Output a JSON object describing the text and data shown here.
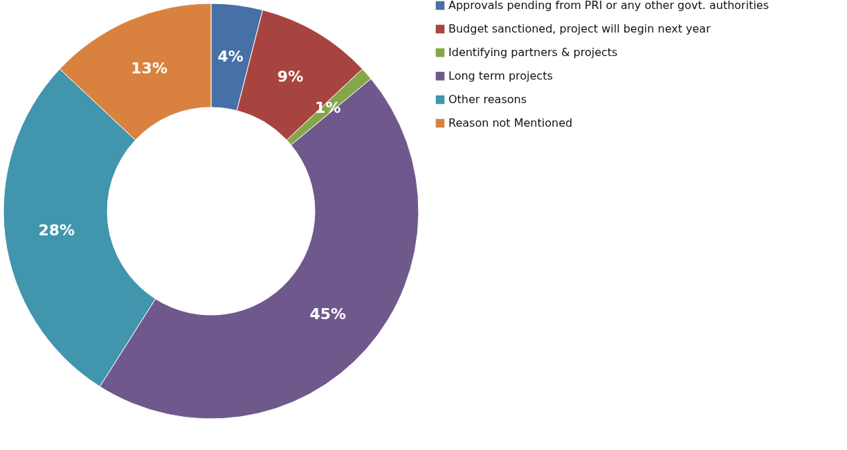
{
  "chart_data": {
    "type": "donut",
    "categories": [
      "Approvals pending from PRI or any other govt. authorities",
      "Budget sanctioned, project will begin next year",
      "Identifying partners & projects",
      "Long term projects",
      "Other reasons",
      "Reason not Mentioned"
    ],
    "values": [
      4,
      9,
      1,
      45,
      28,
      13
    ],
    "colors": [
      "#4670a6",
      "#a8443f",
      "#86a64a",
      "#6f588c",
      "#4195ad",
      "#d98240"
    ],
    "value_labels": [
      "4%",
      "9%",
      "1%",
      "45%",
      "28%",
      "13%"
    ],
    "legend": "right"
  }
}
